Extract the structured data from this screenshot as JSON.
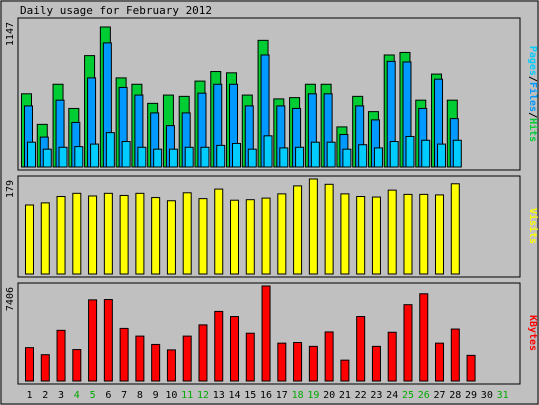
{
  "chart_data": {
    "type": "bar",
    "title": "Daily usage for February 2012",
    "days": [
      "1",
      "2",
      "3",
      "4",
      "5",
      "6",
      "7",
      "8",
      "9",
      "10",
      "11",
      "12",
      "13",
      "14",
      "15",
      "16",
      "17",
      "18",
      "19",
      "20",
      "21",
      "22",
      "23",
      "24",
      "25",
      "26",
      "27",
      "28",
      "29",
      "30",
      "31"
    ],
    "weekend_days": [
      "4",
      "5",
      "11",
      "12",
      "18",
      "19",
      "25",
      "26",
      "31"
    ],
    "day_colors": {
      "weekday": "#000000",
      "weekend": "#00aa00"
    },
    "panels": [
      {
        "id": "hits",
        "max_label": "1147",
        "ymax": 1147,
        "series": [
          {
            "name": "Hits",
            "color": "#00cc33",
            "values": [
              575,
              335,
              650,
              460,
              875,
              1100,
              700,
              650,
              500,
              565,
              555,
              675,
              750,
              740,
              565,
              995,
              535,
              545,
              650,
              650,
              315,
              555,
              435,
              880,
              900,
              525,
              730,
              525,
              null,
              null,
              null
            ]
          },
          {
            "name": "Files",
            "color": "#0099ff",
            "values": [
              480,
              235,
              525,
              350,
              700,
              975,
              625,
              565,
              425,
              325,
              425,
              580,
              650,
              650,
              480,
              880,
              480,
              460,
              575,
              575,
              255,
              480,
              370,
              830,
              825,
              460,
              690,
              380,
              null,
              null,
              null
            ]
          },
          {
            "name": "Pages",
            "color": "#00ccff",
            "values": [
              195,
              140,
              155,
              160,
              180,
              270,
              200,
              155,
              140,
              140,
              155,
              155,
              170,
              185,
              140,
              245,
              150,
              155,
              195,
              195,
              140,
              175,
              150,
              200,
              240,
              210,
              180,
              210,
              null,
              null,
              null
            ]
          }
        ],
        "legend_words": [
          {
            "text": "Pages",
            "color": "#00ccff"
          },
          {
            "text": "/",
            "color": "#000000"
          },
          {
            "text": "Files",
            "color": "#0099ff"
          },
          {
            "text": "/",
            "color": "#000000"
          },
          {
            "text": "Hits",
            "color": "#00cc33"
          }
        ]
      },
      {
        "id": "visits",
        "max_label": "179",
        "ymax": 179,
        "series": [
          {
            "name": "Visits",
            "color": "#ffff00",
            "values": [
              130,
              134,
              146,
              152,
              147,
              152,
              148,
              152,
              144,
              138,
              153,
              142,
              160,
              139,
              140,
              143,
              151,
              166,
              179,
              169,
              151,
              146,
              145,
              158,
              150,
              150,
              149,
              170,
              null,
              null,
              null
            ]
          }
        ],
        "legend_words": [
          {
            "text": "Visits",
            "color": "#ffff00"
          }
        ]
      },
      {
        "id": "kbytes",
        "max_label": "7406",
        "ymax": 7406,
        "series": [
          {
            "name": "KBytes",
            "color": "#ff0000",
            "values": [
              2600,
              2050,
              3950,
              2450,
              6325,
              6350,
              4100,
              3500,
              2850,
              2425,
              3500,
              4375,
              5425,
              5025,
              3725,
              7406,
              2950,
              3000,
              2700,
              3825,
              1625,
              5025,
              2700,
              3800,
              5950,
              6800,
              2950,
              4050,
              2000,
              null,
              null
            ]
          }
        ],
        "legend_words": [
          {
            "text": "KBytes",
            "color": "#ff0000"
          }
        ]
      }
    ]
  }
}
